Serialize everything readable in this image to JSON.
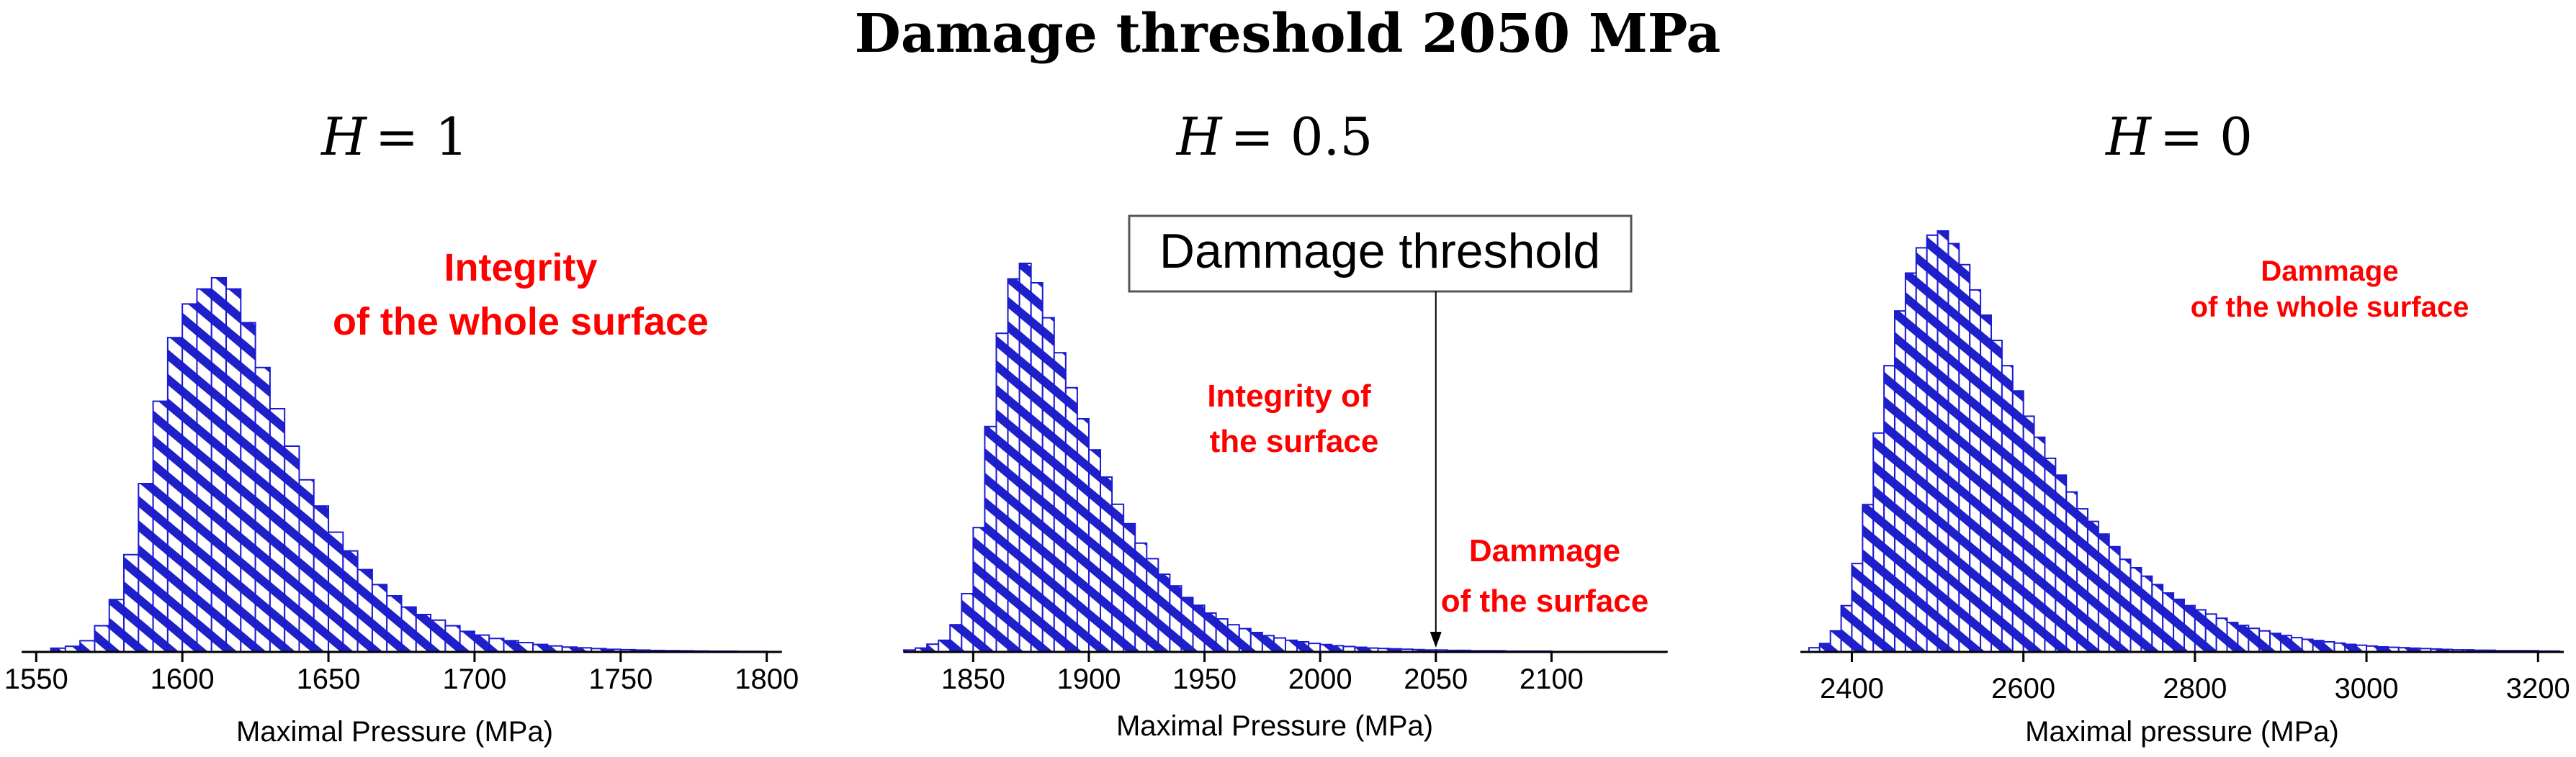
{
  "title": "Damage threshold 2050 MPa",
  "colors": {
    "bar_stroke": "#1a1ad6",
    "bar_hatch": "#2020c8",
    "annotation": "#ff0000",
    "axis": "#000000",
    "callout_border": "#555555"
  },
  "chart_data": [
    {
      "type": "bar",
      "subtitle_var": "H",
      "subtitle_eq": "= 1",
      "xlabel": "Maximal Pressure (MPa)",
      "xlim": [
        1545,
        1805
      ],
      "ylim": [
        0,
        100
      ],
      "ticks": [
        1550,
        1600,
        1650,
        1700,
        1750,
        1800
      ],
      "bin_start": 1550,
      "bin_width": 5,
      "values": [
        0,
        1,
        1.5,
        3,
        7,
        14,
        26,
        45,
        67,
        84,
        93,
        97,
        100,
        97,
        88,
        76,
        65,
        55,
        46,
        39,
        32,
        27,
        22,
        18,
        15,
        12,
        10,
        8.5,
        7,
        5.5,
        4.5,
        3.6,
        3,
        2.5,
        2,
        1.6,
        1.3,
        1.1,
        0.9,
        0.7,
        0.6,
        0.5,
        0.4,
        0.35,
        0.3,
        0.25,
        0.2,
        0.2,
        0.15,
        0.15,
        0.1
      ],
      "annotations": [
        {
          "text": "Integrity",
          "anchor": "upper-right"
        },
        {
          "text": "of the whole surface",
          "anchor": "upper-right"
        }
      ]
    },
    {
      "type": "bar",
      "subtitle_var": "H",
      "subtitle_eq": "= 0.5",
      "xlabel": "Maximal Pressure (MPa)",
      "xlim": [
        1820,
        2150
      ],
      "ylim": [
        0,
        100
      ],
      "ticks": [
        1850,
        1900,
        1950,
        2000,
        2050,
        2100
      ],
      "bin_start": 1820,
      "bin_width": 5,
      "values": [
        0.5,
        1,
        2,
        3,
        7,
        15,
        32,
        58,
        82,
        96,
        100,
        95,
        86,
        77,
        68,
        60,
        52,
        45,
        38,
        33,
        28,
        24,
        20,
        17,
        14,
        12,
        10,
        8.5,
        7,
        6,
        5,
        4.2,
        3.6,
        3,
        2.6,
        2.2,
        1.9,
        1.6,
        1.4,
        1.2,
        1,
        0.9,
        0.8,
        0.7,
        0.6,
        0.5,
        0.5,
        0.4,
        0.4,
        0.3,
        0.3,
        0.3,
        0.2,
        0.2,
        0.2,
        0.2,
        0.1,
        0.1,
        0.1,
        0.1,
        0.1,
        0.1,
        0.1,
        0.1,
        0.1,
        0.1
      ],
      "callout": "Dammage threshold",
      "threshold": 2050,
      "annotations": [
        {
          "text": "Integrity of",
          "anchor": "middle"
        },
        {
          "text": "the surface",
          "anchor": "middle"
        },
        {
          "text": "Dammage",
          "anchor": "lower-right"
        },
        {
          "text": "of the surface",
          "anchor": "lower-right"
        }
      ]
    },
    {
      "type": "bar",
      "subtitle_var": "H",
      "subtitle_eq": "= 0",
      "xlabel": "Maximal pressure (MPa)",
      "xlim": [
        2340,
        3230
      ],
      "ylim": [
        0,
        100
      ],
      "ticks": [
        2400,
        2600,
        2800,
        3000,
        3200
      ],
      "bin_start": 2350,
      "bin_width": 12.5,
      "values": [
        1,
        2,
        5,
        11,
        21,
        35,
        52,
        68,
        81,
        90,
        96,
        99,
        100,
        97,
        92,
        86,
        80,
        74,
        68,
        62,
        56,
        51,
        46,
        42,
        38,
        34,
        31,
        28,
        25,
        22,
        20,
        18,
        16,
        14,
        12.5,
        11,
        10,
        9,
        8,
        7,
        6.3,
        5.6,
        5,
        4.4,
        3.9,
        3.4,
        3,
        2.7,
        2.4,
        2.1,
        1.8,
        1.6,
        1.4,
        1.2,
        1.1,
        1,
        0.9,
        0.8,
        0.7,
        0.6,
        0.5,
        0.5,
        0.4,
        0.4,
        0.3,
        0.3,
        0.3,
        0.3,
        0.2,
        0.2
      ],
      "annotations": [
        {
          "text": "Dammage",
          "anchor": "upper-right"
        },
        {
          "text": "of the whole surface",
          "anchor": "upper-right"
        }
      ]
    }
  ]
}
